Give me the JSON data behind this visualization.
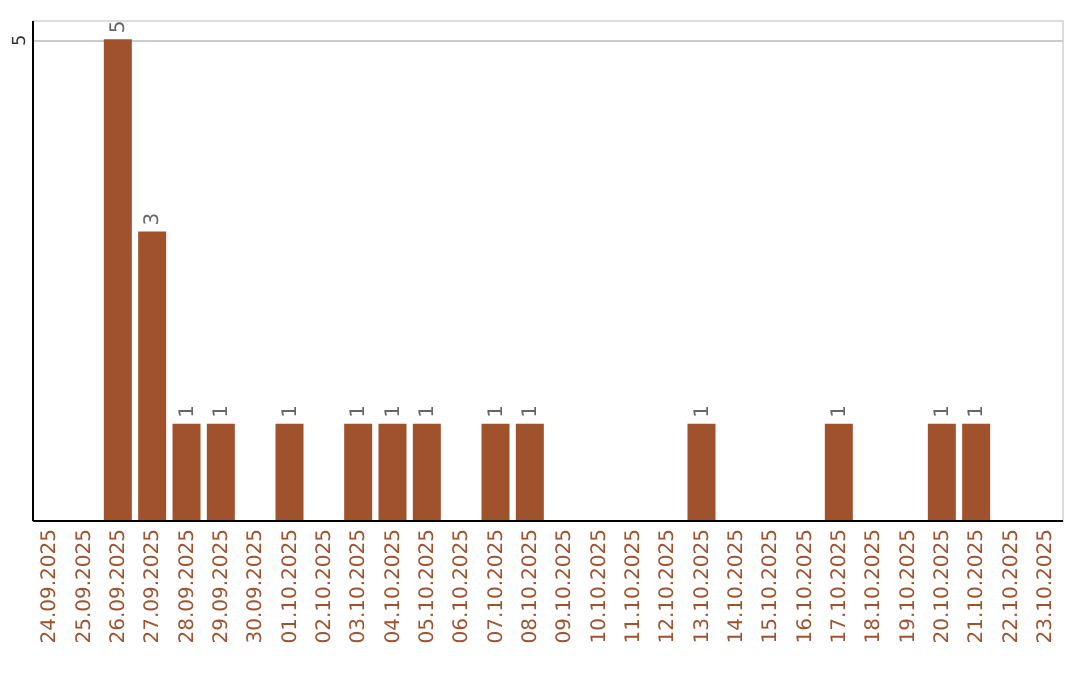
{
  "chart_data": {
    "type": "bar",
    "categories": [
      "24.09.2025",
      "25.09.2025",
      "26.09.2025",
      "27.09.2025",
      "28.09.2025",
      "29.09.2025",
      "30.09.2025",
      "01.10.2025",
      "02.10.2025",
      "03.10.2025",
      "04.10.2025",
      "05.10.2025",
      "06.10.2025",
      "07.10.2025",
      "08.10.2025",
      "09.10.2025",
      "10.10.2025",
      "11.10.2025",
      "12.10.2025",
      "13.10.2025",
      "14.10.2025",
      "15.10.2025",
      "16.10.2025",
      "17.10.2025",
      "18.10.2025",
      "19.10.2025",
      "20.10.2025",
      "21.10.2025",
      "22.10.2025",
      "23.10.2025"
    ],
    "values": [
      0,
      0,
      5,
      3,
      1,
      1,
      0,
      1,
      0,
      1,
      1,
      1,
      0,
      1,
      1,
      0,
      0,
      0,
      0,
      1,
      0,
      0,
      0,
      1,
      0,
      0,
      1,
      1,
      0,
      0
    ],
    "value_labels": [
      null,
      null,
      "5",
      "3",
      "1",
      "1",
      null,
      "1",
      null,
      "1",
      "1",
      "1",
      null,
      "1",
      "1",
      null,
      null,
      null,
      null,
      "1",
      null,
      null,
      null,
      "1",
      null,
      null,
      "1",
      "1",
      null,
      null
    ],
    "color": "#a0522d",
    "ylim": [
      0,
      5.2
    ],
    "yticks": [
      5
    ],
    "grid": "y"
  }
}
